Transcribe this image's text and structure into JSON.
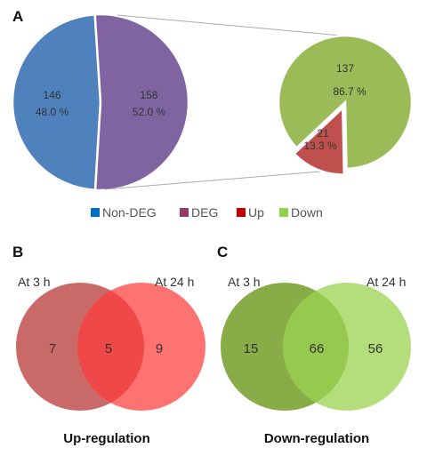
{
  "panels": {
    "a": "A",
    "b": "B",
    "c": "C"
  },
  "chart_data": [
    {
      "type": "pie",
      "panel": "A",
      "slices": [
        {
          "label": "Non-DEG",
          "count": "146",
          "percent": "48.0 %",
          "value": 146,
          "color": "#4f81bd"
        },
        {
          "label": "DEG",
          "count": "158",
          "percent": "52.0 %",
          "value": 158,
          "color": "#8064a2"
        }
      ]
    },
    {
      "type": "pie",
      "panel": "A",
      "slices": [
        {
          "label": "Down",
          "count": "137",
          "percent": "86.7 %",
          "value": 137,
          "color": "#9bbb59"
        },
        {
          "label": "Up",
          "count": "21",
          "percent": "13.3 %",
          "value": 21,
          "color": "#c0504d"
        }
      ]
    },
    {
      "type": "venn",
      "panel": "B",
      "title": "Up-regulation",
      "sets": [
        {
          "name": "At 3 h",
          "only": "7",
          "color": "#c0504d"
        },
        {
          "name": "At 24 h",
          "only": "9",
          "color": "#ff3b3b"
        }
      ],
      "overlap": "5"
    },
    {
      "type": "venn",
      "panel": "C",
      "title": "Down-regulation",
      "sets": [
        {
          "name": "At 3 h",
          "only": "15",
          "color": "#77a12e"
        },
        {
          "name": "At 24 h",
          "only": "56",
          "color": "#9bd34f"
        }
      ],
      "overlap": "66"
    }
  ],
  "legend": [
    {
      "label": "Non-DEG",
      "color": "#0070c0"
    },
    {
      "label": "DEG",
      "color": "#953a6a"
    },
    {
      "label": "Up",
      "color": "#c00000"
    },
    {
      "label": "Down",
      "color": "#92d050"
    }
  ]
}
